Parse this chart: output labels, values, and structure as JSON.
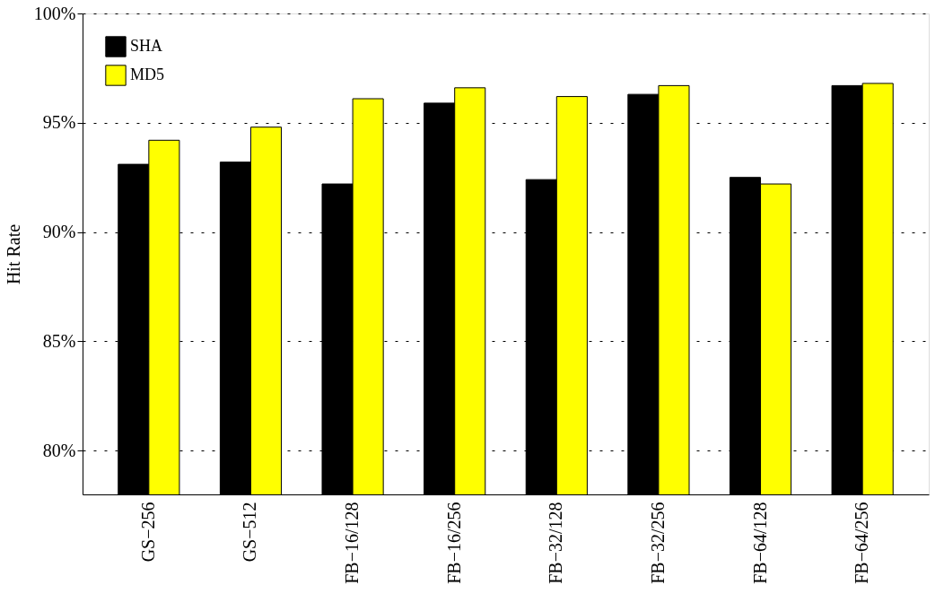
{
  "chart_data": {
    "type": "bar",
    "ylabel": "Hit Rate",
    "categories": [
      "GS−256",
      "GS−512",
      "FB−16/128",
      "FB−16/256",
      "FB−32/128",
      "FB−32/256",
      "FB−64/128",
      "FB−64/256"
    ],
    "series": [
      {
        "name": "SHA",
        "color": "#000000",
        "values": [
          93.1,
          93.2,
          92.2,
          95.9,
          92.4,
          96.3,
          92.5,
          96.7
        ]
      },
      {
        "name": "MD5",
        "color": "#ffff00",
        "values": [
          94.2,
          94.8,
          96.1,
          96.6,
          96.2,
          96.7,
          92.2,
          96.8
        ]
      }
    ],
    "ylim": [
      78,
      100
    ],
    "yticks": [
      {
        "value": 80,
        "label": "80%"
      },
      {
        "value": 85,
        "label": "85%"
      },
      {
        "value": 90,
        "label": "90%"
      },
      {
        "value": 95,
        "label": "95%"
      },
      {
        "value": 100,
        "label": "100%"
      }
    ],
    "grid": "y",
    "legend": "top left"
  }
}
